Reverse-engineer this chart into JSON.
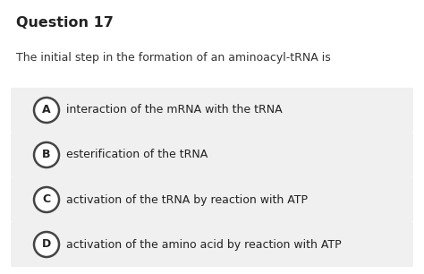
{
  "title": "Question 17",
  "question": "The initial step in the formation of an aminoacyl-tRNA is",
  "options": [
    {
      "label": "A",
      "text": "interaction of the mRNA with the tRNA"
    },
    {
      "label": "B",
      "text": "esterification of the tRNA"
    },
    {
      "label": "C",
      "text": "activation of the tRNA by reaction with ATP"
    },
    {
      "label": "D",
      "text": "activation of the amino acid by reaction with ATP"
    }
  ],
  "bg_color": "#ffffff",
  "option_bg_color": "#f0f0f0",
  "title_fontsize": 11.5,
  "question_fontsize": 9,
  "option_fontsize": 9,
  "title_color": "#222222",
  "question_color": "#333333",
  "option_text_color": "#222222",
  "circle_edge_color": "#444444",
  "circle_face_color": "#ffffff",
  "label_fontsize": 9
}
